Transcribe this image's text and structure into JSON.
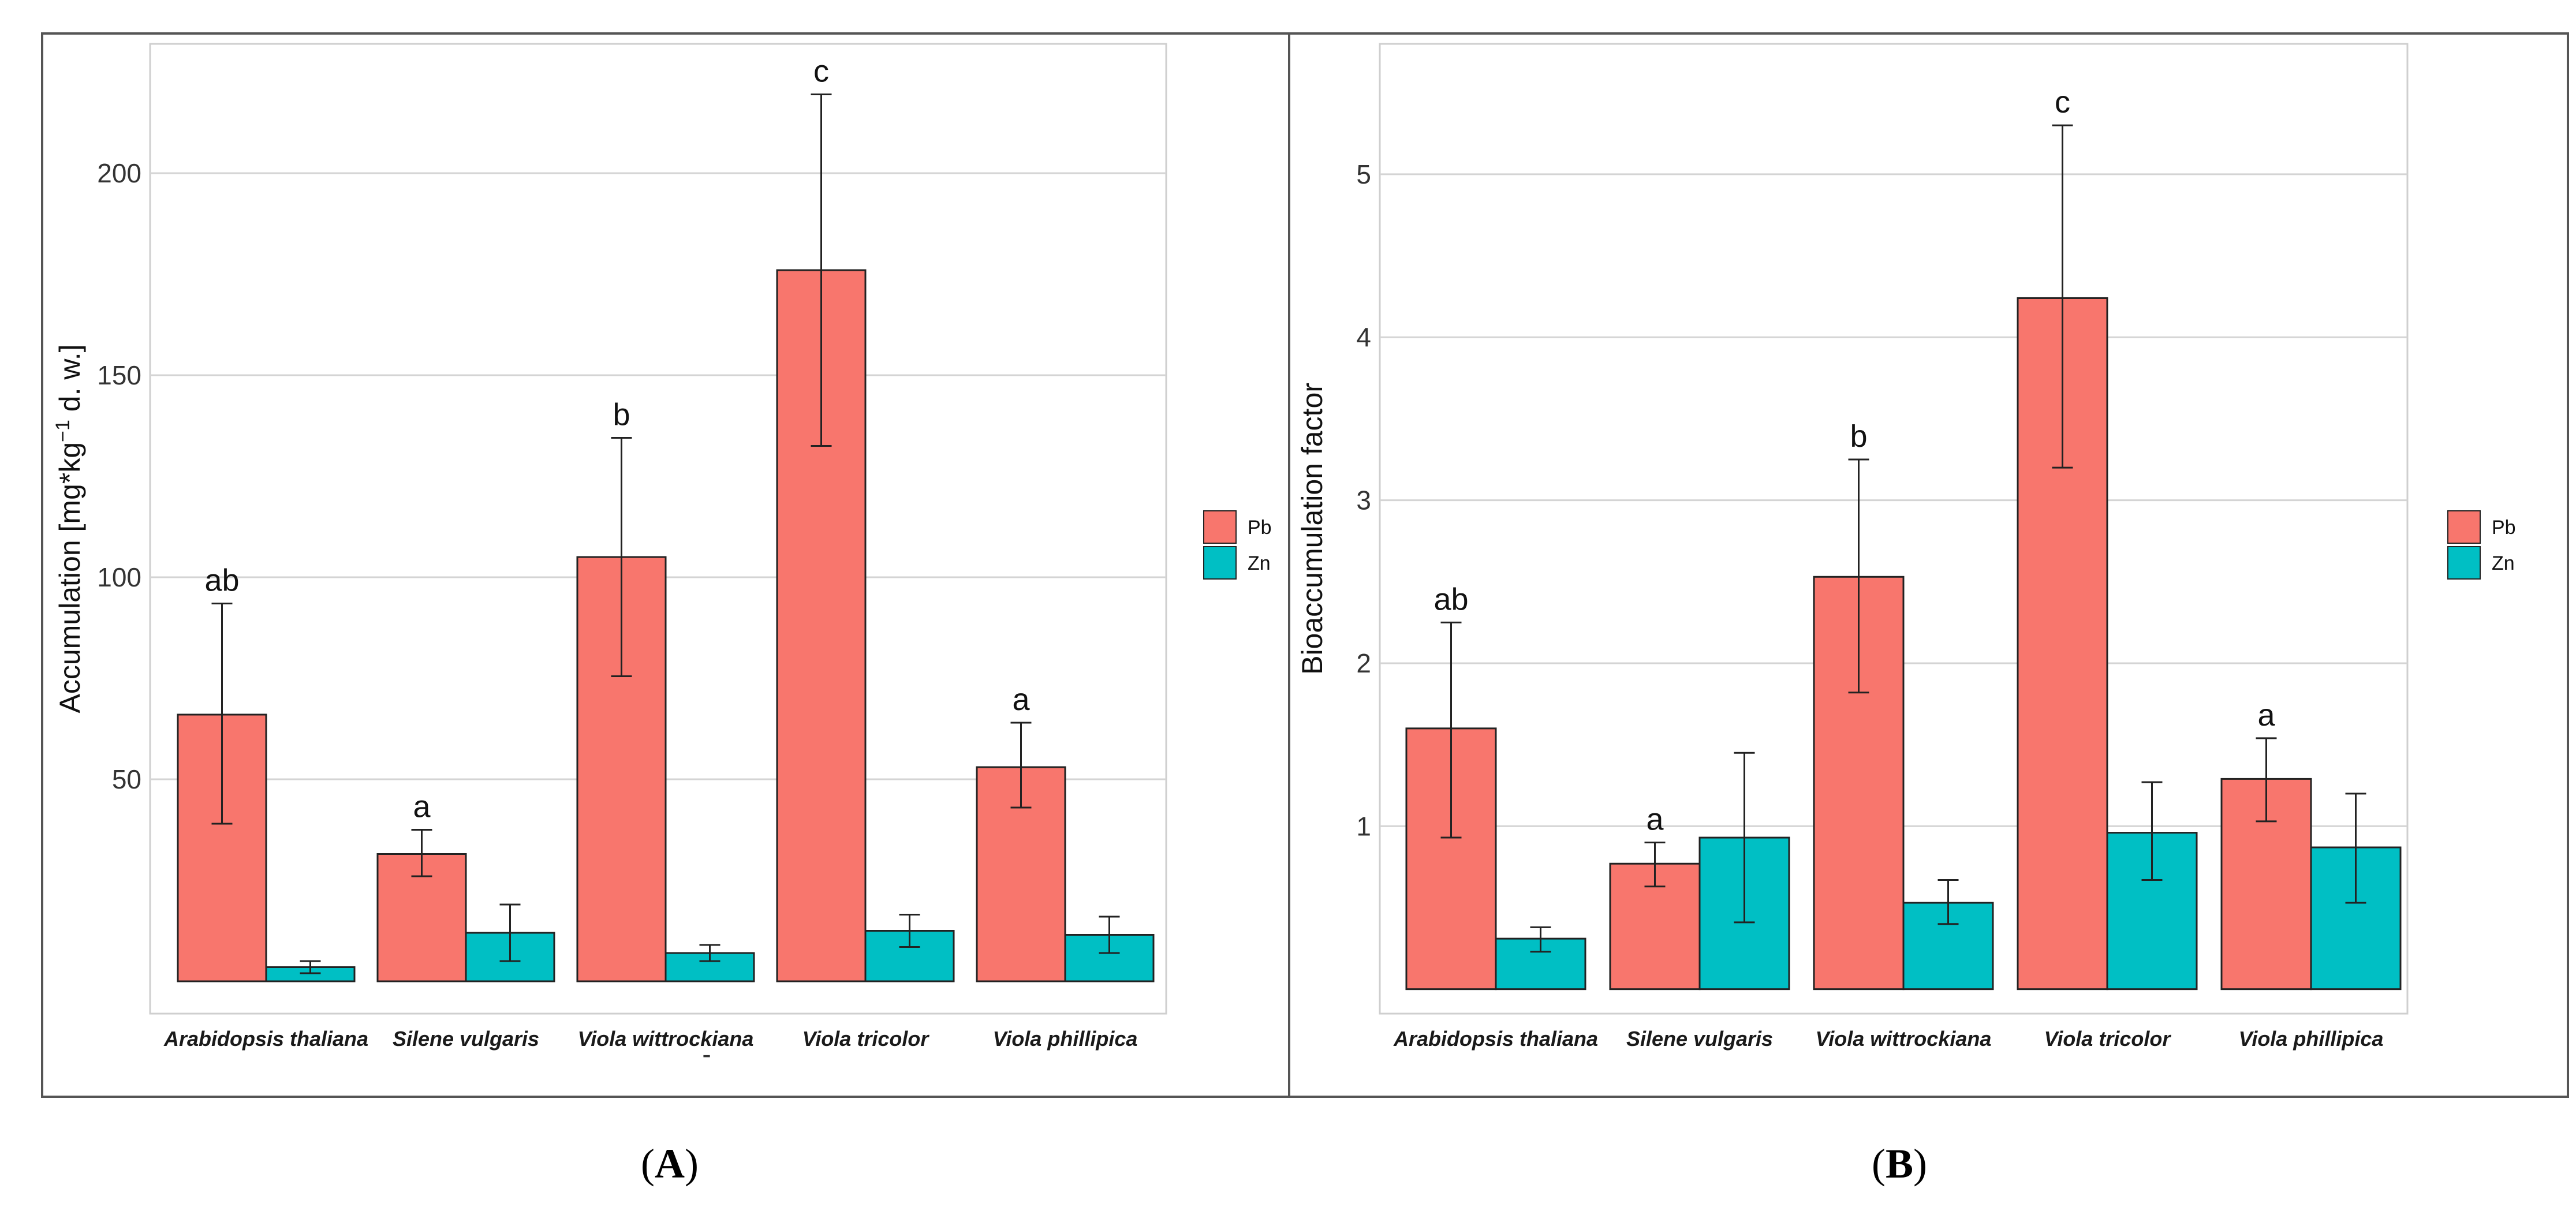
{
  "colors": {
    "pb": "#f8766d",
    "zn": "#00bfc4",
    "grid": "#d4d4d4",
    "panel_border": "#cfcfcf",
    "figure_border": "#555555",
    "bar_outline": "#222222"
  },
  "chart_data": [
    {
      "type": "bar",
      "panel_label": "A",
      "ylabel": "Accumulation [mg*kg⁻¹ d. w.]",
      "ylabel_parts": {
        "main": "Accumulation [mg*kg",
        "sup": "−1",
        "rest": " d. w.]"
      },
      "ylim": [
        -8,
        232
      ],
      "yticks": [
        50,
        100,
        150,
        200
      ],
      "ytick_labels": [
        "50",
        "100",
        "150",
        "200"
      ],
      "grid": true,
      "legend_position": "right",
      "categories": [
        "Arabidopsis thaliana",
        "Silene vulgaris",
        "Viola wittrockiana",
        "Viola tricolor",
        "Viola phillipica"
      ],
      "series": [
        {
          "name": "Pb",
          "values": [
            66,
            31.5,
            105,
            176,
            53
          ],
          "err_low": [
            39,
            26,
            75.5,
            132.5,
            43
          ],
          "err_high": [
            93.5,
            37.5,
            134.5,
            219.5,
            64
          ]
        },
        {
          "name": "Zn",
          "values": [
            3.5,
            12,
            7,
            12.5,
            11.5
          ],
          "err_low": [
            2,
            5,
            5,
            8.5,
            7
          ],
          "err_high": [
            5,
            19,
            9,
            16.5,
            16
          ]
        }
      ],
      "annotations": [
        "ab",
        "a",
        "b",
        "c",
        "a"
      ],
      "stray_mark": "-"
    },
    {
      "type": "bar",
      "panel_label": "B",
      "ylabel": "Bioaccumulation factor",
      "ylim": [
        -0.15,
        5.8
      ],
      "yticks": [
        1,
        2,
        3,
        4,
        5
      ],
      "ytick_labels": [
        "1",
        "2",
        "3",
        "4",
        "5"
      ],
      "grid": true,
      "legend_position": "right",
      "categories": [
        "Arabidopsis thaliana",
        "Silene vulgaris",
        "Viola wittrockiana",
        "Viola tricolor",
        "Viola phillipica"
      ],
      "series": [
        {
          "name": "Pb",
          "values": [
            1.6,
            0.77,
            2.53,
            4.24,
            1.29
          ],
          "err_low": [
            0.93,
            0.63,
            1.82,
            3.2,
            1.03
          ],
          "err_high": [
            2.25,
            0.9,
            3.25,
            5.3,
            1.54
          ]
        },
        {
          "name": "Zn",
          "values": [
            0.31,
            0.93,
            0.53,
            0.96,
            0.87
          ],
          "err_low": [
            0.23,
            0.41,
            0.4,
            0.67,
            0.53
          ],
          "err_high": [
            0.38,
            1.45,
            0.67,
            1.27,
            1.2
          ]
        }
      ],
      "annotations": [
        "ab",
        "a",
        "b",
        "c",
        "a"
      ]
    }
  ]
}
